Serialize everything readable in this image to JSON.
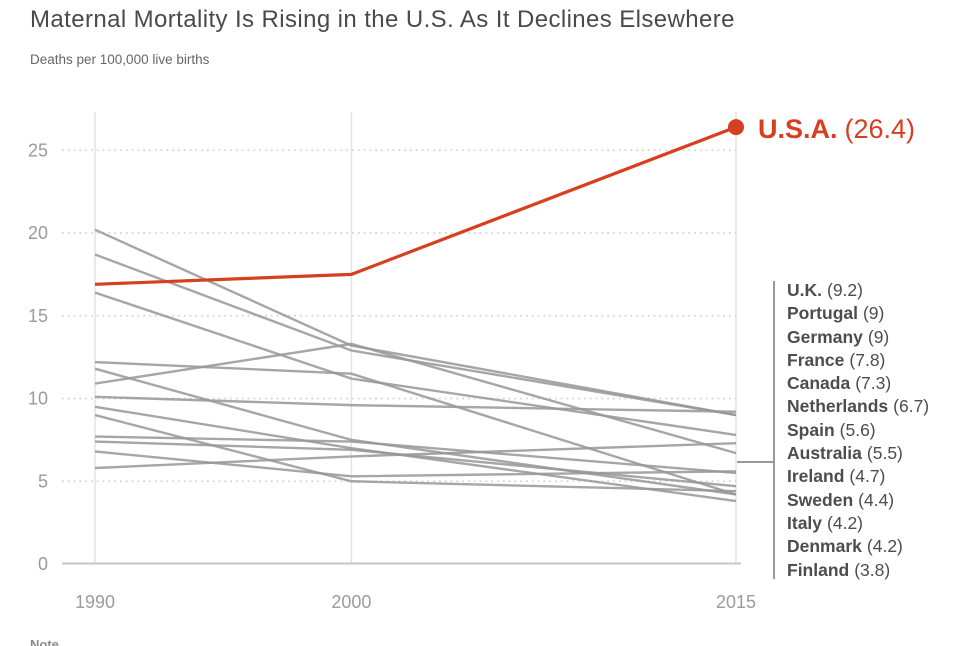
{
  "header": {
    "title": "Maternal Mortality Is Rising in the U.S. As It Declines Elsewhere",
    "subtitle": "Deaths per 100,000 live births"
  },
  "footer": {
    "note": "Note"
  },
  "colors": {
    "accent_red": "#d64020",
    "line_gray": "#979797",
    "axis_text": "#9b9b9b",
    "grid_dotted": "#d4d4d4",
    "year_line": "#e4e4e4",
    "axis_line": "#c6c6c6",
    "bracket": "#999999",
    "legend_text": "#4d4d4d",
    "title_text": "#4a4a4a"
  },
  "chart_data": {
    "type": "line",
    "title": "Maternal Mortality Is Rising in the U.S. As It Declines Elsewhere",
    "ylabel": "Deaths per 100,000 live births",
    "x": [
      1990,
      2000,
      2015
    ],
    "x_tick_labels": [
      "1990",
      "2000",
      "2015"
    ],
    "y_ticks": [
      0,
      5,
      10,
      15,
      20,
      25
    ],
    "ylim": [
      0,
      27.5
    ],
    "grid": "horizontal-dotted",
    "legend_position": "right",
    "series": [
      {
        "name": "U.S.A.",
        "values": [
          16.9,
          17.5,
          26.4
        ],
        "legend_label": "(26.4)",
        "highlight": true
      },
      {
        "name": "U.K.",
        "values": [
          10.1,
          9.6,
          9.2
        ],
        "legend_label": "(9.2)",
        "highlight": false
      },
      {
        "name": "Portugal",
        "values": [
          20.2,
          13.2,
          9.0
        ],
        "legend_label": "(9)",
        "highlight": false
      },
      {
        "name": "Germany",
        "values": [
          18.7,
          12.9,
          9.0
        ],
        "legend_label": "(9)",
        "highlight": false
      },
      {
        "name": "France",
        "values": [
          16.4,
          11.2,
          7.8
        ],
        "legend_label": "(7.8)",
        "highlight": false
      },
      {
        "name": "Canada",
        "values": [
          5.8,
          6.5,
          7.3
        ],
        "legend_label": "(7.3)",
        "highlight": false
      },
      {
        "name": "Netherlands",
        "values": [
          10.9,
          13.3,
          6.7
        ],
        "legend_label": "(6.7)",
        "highlight": false
      },
      {
        "name": "Spain",
        "values": [
          6.8,
          5.3,
          5.6
        ],
        "legend_label": "(5.6)",
        "highlight": false
      },
      {
        "name": "Australia",
        "values": [
          7.7,
          7.4,
          5.5
        ],
        "legend_label": "(5.5)",
        "highlight": false
      },
      {
        "name": "Ireland",
        "values": [
          7.4,
          6.9,
          4.7
        ],
        "legend_label": "(4.7)",
        "highlight": false
      },
      {
        "name": "Sweden",
        "values": [
          9.0,
          5.0,
          4.4
        ],
        "legend_label": "(4.4)",
        "highlight": false
      },
      {
        "name": "Italy",
        "values": [
          11.8,
          7.5,
          4.2
        ],
        "legend_label": "(4.2)",
        "highlight": false
      },
      {
        "name": "Denmark",
        "values": [
          12.2,
          11.5,
          4.2
        ],
        "legend_label": "(4.2)",
        "highlight": false
      },
      {
        "name": "Finland",
        "values": [
          9.5,
          7.0,
          3.8
        ],
        "legend_label": "(3.8)",
        "highlight": false
      }
    ]
  }
}
